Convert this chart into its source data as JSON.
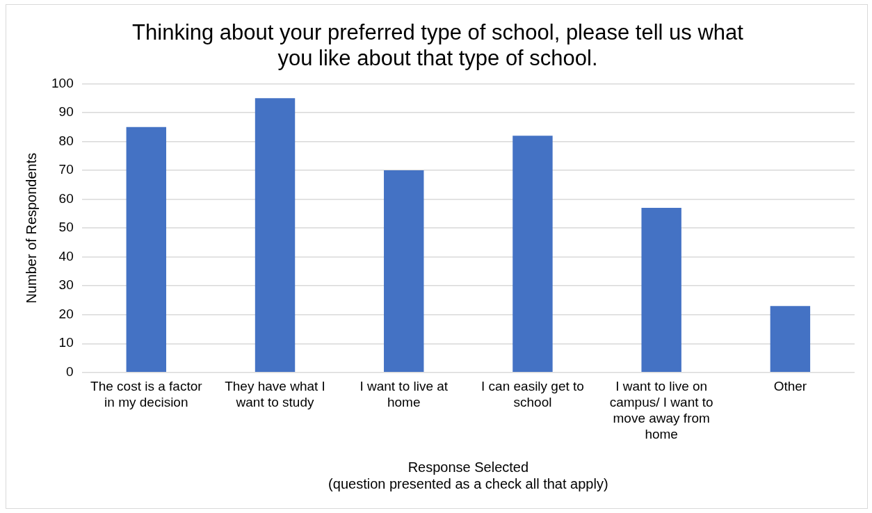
{
  "chart_data": {
    "type": "bar",
    "title": "Thinking about your preferred type of school, please tell us what\nyou like about that type of school.",
    "xlabel": "Response Selected\n(question presented as a check all that apply)",
    "ylabel": "Number of Respondents",
    "categories": [
      "The cost is a factor in my decision",
      "They have what I want to study",
      "I want to live at home",
      "I can easily get to school",
      "I want to live on campus/ I want to move away from home",
      "Other"
    ],
    "values": [
      85,
      95,
      70,
      82,
      57,
      23
    ],
    "color": "#4472c4",
    "ylim": [
      0,
      100
    ],
    "yticks": [
      0,
      10,
      20,
      30,
      40,
      50,
      60,
      70,
      80,
      90,
      100
    ],
    "grid": "y",
    "legend": false
  }
}
